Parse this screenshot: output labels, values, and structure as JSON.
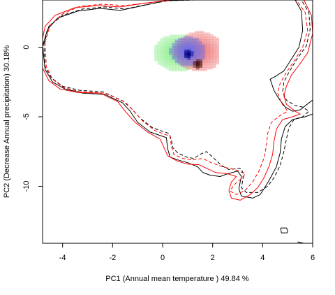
{
  "chart_data": {
    "type": "contour",
    "title": "",
    "xlabel": "PC1 (Annual mean temperature ) 49.84 %",
    "ylabel": "PC2 (Decrease Annual precipitation) 30.18%",
    "xlim": [
      -4.8,
      6.0
    ],
    "ylim": [
      -14.1,
      3.4
    ],
    "xticks": [
      -4,
      -2,
      0,
      2,
      4,
      6
    ],
    "yticks": [
      0,
      -5,
      -10
    ],
    "grid": false,
    "legend": "none",
    "contours": [
      {
        "color": "#000000",
        "style": "solid",
        "points": [
          [
            -4.8,
            0.1
          ],
          [
            -4.6,
            1.3
          ],
          [
            -4.2,
            2.1
          ],
          [
            -3.4,
            2.6
          ],
          [
            -2.5,
            2.8
          ],
          [
            -1.7,
            2.65
          ],
          [
            -0.9,
            2.95
          ],
          [
            0.1,
            3.35
          ],
          [
            1.1,
            3.4
          ],
          [
            3.2,
            3.4
          ],
          [
            5.3,
            3.4
          ],
          [
            5.55,
            2.6
          ],
          [
            5.6,
            1.2
          ],
          [
            5.45,
            0.0
          ],
          [
            5.1,
            -1.0
          ],
          [
            4.85,
            -1.7
          ],
          [
            4.5,
            -2.1
          ],
          [
            4.3,
            -2.3
          ],
          [
            4.45,
            -3.1
          ],
          [
            4.65,
            -3.7
          ],
          [
            4.9,
            -4.3
          ],
          [
            5.2,
            -4.6
          ],
          [
            5.5,
            -4.5
          ],
          [
            5.85,
            -4.0
          ],
          [
            6.0,
            -3.8
          ],
          [
            6.0,
            -4.8
          ],
          [
            5.7,
            -5.0
          ],
          [
            5.2,
            -5.2
          ],
          [
            4.9,
            -5.7
          ],
          [
            4.75,
            -6.6
          ],
          [
            4.7,
            -7.6
          ],
          [
            4.55,
            -8.6
          ],
          [
            4.25,
            -9.6
          ],
          [
            4.05,
            -10.2
          ],
          [
            3.9,
            -10.6
          ],
          [
            3.6,
            -10.85
          ],
          [
            3.15,
            -10.7
          ],
          [
            3.05,
            -10.2
          ],
          [
            3.1,
            -9.7
          ],
          [
            3.15,
            -9.3
          ],
          [
            3.0,
            -8.9
          ],
          [
            2.6,
            -9.1
          ],
          [
            2.3,
            -9.3
          ],
          [
            1.9,
            -9.2
          ],
          [
            1.6,
            -9.0
          ],
          [
            1.4,
            -8.6
          ],
          [
            1.0,
            -8.3
          ],
          [
            0.6,
            -8.1
          ],
          [
            0.3,
            -7.9
          ],
          [
            0.2,
            -7.3
          ],
          [
            0.15,
            -6.5
          ],
          [
            -0.5,
            -6.1
          ],
          [
            -1.0,
            -5.4
          ],
          [
            -1.3,
            -4.6
          ],
          [
            -1.6,
            -4.0
          ],
          [
            -2.3,
            -3.4
          ],
          [
            -3.2,
            -3.3
          ],
          [
            -3.9,
            -3.0
          ],
          [
            -4.4,
            -2.5
          ],
          [
            -4.7,
            -1.6
          ],
          [
            -4.8,
            0.1
          ]
        ]
      },
      {
        "color": "#000000",
        "style": "dashed",
        "points": [
          [
            -4.75,
            0.2
          ],
          [
            -4.55,
            1.5
          ],
          [
            -4.0,
            2.3
          ],
          [
            -3.2,
            2.75
          ],
          [
            -2.3,
            2.9
          ],
          [
            -1.5,
            2.75
          ],
          [
            -0.7,
            3.05
          ],
          [
            0.2,
            3.35
          ],
          [
            1.3,
            3.4
          ],
          [
            3.4,
            3.4
          ],
          [
            5.55,
            3.4
          ],
          [
            5.85,
            2.5
          ],
          [
            5.9,
            1.3
          ],
          [
            5.75,
            0.1
          ],
          [
            5.35,
            -0.9
          ],
          [
            5.05,
            -1.8
          ],
          [
            4.85,
            -2.5
          ],
          [
            4.8,
            -3.2
          ],
          [
            4.95,
            -3.8
          ],
          [
            5.3,
            -4.2
          ],
          [
            5.6,
            -4.3
          ],
          [
            5.85,
            -4.6
          ],
          [
            5.6,
            -5.0
          ],
          [
            5.25,
            -5.2
          ],
          [
            5.05,
            -5.8
          ],
          [
            4.95,
            -6.6
          ],
          [
            4.85,
            -7.5
          ],
          [
            4.7,
            -8.5
          ],
          [
            4.45,
            -9.4
          ],
          [
            4.2,
            -10.0
          ],
          [
            3.8,
            -10.45
          ],
          [
            3.35,
            -10.45
          ],
          [
            3.15,
            -10.1
          ],
          [
            3.2,
            -9.6
          ],
          [
            3.25,
            -9.1
          ],
          [
            3.1,
            -8.7
          ],
          [
            2.65,
            -8.8
          ],
          [
            2.35,
            -8.5
          ],
          [
            2.0,
            -7.9
          ],
          [
            1.75,
            -7.5
          ],
          [
            1.5,
            -7.7
          ],
          [
            1.25,
            -8.0
          ],
          [
            0.95,
            -7.9
          ],
          [
            0.6,
            -7.6
          ],
          [
            0.4,
            -7.2
          ],
          [
            0.35,
            -6.6
          ],
          [
            0.25,
            -6.2
          ],
          [
            -0.4,
            -5.8
          ],
          [
            -0.9,
            -5.1
          ],
          [
            -1.25,
            -4.4
          ],
          [
            -1.6,
            -3.85
          ],
          [
            -2.4,
            -3.2
          ],
          [
            -3.3,
            -3.1
          ],
          [
            -4.0,
            -2.8
          ],
          [
            -4.45,
            -2.2
          ],
          [
            -4.7,
            -1.4
          ],
          [
            -4.75,
            0.2
          ]
        ]
      },
      {
        "color": "#ff0000",
        "style": "solid",
        "points": [
          [
            -4.85,
            0.2
          ],
          [
            -4.7,
            1.5
          ],
          [
            -4.3,
            2.3
          ],
          [
            -3.5,
            2.85
          ],
          [
            -2.6,
            3.0
          ],
          [
            -1.7,
            2.9
          ],
          [
            -0.8,
            3.15
          ],
          [
            0.3,
            3.4
          ],
          [
            1.5,
            3.4
          ],
          [
            3.5,
            3.4
          ],
          [
            5.65,
            3.4
          ],
          [
            5.95,
            2.3
          ],
          [
            6.0,
            1.0
          ],
          [
            5.8,
            -0.4
          ],
          [
            5.45,
            -1.3
          ],
          [
            5.15,
            -2.0
          ],
          [
            4.95,
            -2.8
          ],
          [
            4.85,
            -3.5
          ],
          [
            4.95,
            -4.1
          ],
          [
            5.3,
            -4.6
          ],
          [
            5.5,
            -4.8
          ],
          [
            5.2,
            -5.0
          ],
          [
            4.8,
            -5.2
          ],
          [
            4.55,
            -5.9
          ],
          [
            4.45,
            -6.8
          ],
          [
            4.4,
            -7.7
          ],
          [
            4.25,
            -8.6
          ],
          [
            4.05,
            -9.4
          ],
          [
            3.8,
            -10.1
          ],
          [
            3.5,
            -10.6
          ],
          [
            3.1,
            -11.0
          ],
          [
            2.75,
            -10.85
          ],
          [
            2.65,
            -10.3
          ],
          [
            2.75,
            -9.7
          ],
          [
            2.95,
            -9.3
          ],
          [
            2.6,
            -9.1
          ],
          [
            2.1,
            -9.0
          ],
          [
            1.75,
            -8.7
          ],
          [
            1.45,
            -8.45
          ],
          [
            1.0,
            -8.4
          ],
          [
            0.6,
            -8.2
          ],
          [
            0.2,
            -7.8
          ],
          [
            0.05,
            -7.2
          ],
          [
            -0.1,
            -6.6
          ],
          [
            -0.6,
            -6.1
          ],
          [
            -1.1,
            -5.4
          ],
          [
            -1.5,
            -4.6
          ],
          [
            -1.8,
            -3.9
          ],
          [
            -2.5,
            -3.3
          ],
          [
            -3.4,
            -3.25
          ],
          [
            -4.1,
            -3.0
          ],
          [
            -4.55,
            -2.4
          ],
          [
            -4.8,
            -1.5
          ],
          [
            -4.85,
            0.2
          ]
        ]
      },
      {
        "color": "#ff0000",
        "style": "dashed",
        "points": [
          [
            -4.7,
            0.35
          ],
          [
            -4.5,
            1.6
          ],
          [
            -4.0,
            2.4
          ],
          [
            -3.3,
            2.95
          ],
          [
            -2.4,
            3.1
          ],
          [
            -1.5,
            3.0
          ],
          [
            -0.6,
            3.2
          ],
          [
            0.4,
            3.4
          ],
          [
            1.6,
            3.4
          ],
          [
            3.6,
            3.4
          ],
          [
            5.35,
            3.4
          ],
          [
            5.7,
            2.5
          ],
          [
            5.8,
            1.2
          ],
          [
            5.6,
            0.0
          ],
          [
            5.25,
            -1.0
          ],
          [
            4.95,
            -1.8
          ],
          [
            4.7,
            -2.6
          ],
          [
            4.6,
            -3.3
          ],
          [
            4.75,
            -4.0
          ],
          [
            5.0,
            -4.6
          ],
          [
            4.7,
            -4.9
          ],
          [
            4.35,
            -5.4
          ],
          [
            4.2,
            -6.2
          ],
          [
            4.15,
            -7.1
          ],
          [
            4.05,
            -8.0
          ],
          [
            3.85,
            -8.9
          ],
          [
            3.6,
            -9.7
          ],
          [
            3.3,
            -10.3
          ],
          [
            2.95,
            -10.6
          ],
          [
            2.7,
            -10.35
          ],
          [
            2.85,
            -9.9
          ],
          [
            3.15,
            -9.45
          ],
          [
            3.3,
            -9.1
          ],
          [
            2.9,
            -8.8
          ],
          [
            2.4,
            -8.6
          ],
          [
            1.95,
            -8.3
          ],
          [
            1.6,
            -8.0
          ],
          [
            1.2,
            -8.1
          ],
          [
            0.8,
            -8.0
          ],
          [
            0.45,
            -7.7
          ],
          [
            0.35,
            -7.1
          ],
          [
            0.3,
            -6.4
          ],
          [
            -0.3,
            -6.0
          ],
          [
            -0.8,
            -5.3
          ],
          [
            -1.2,
            -4.5
          ],
          [
            -1.5,
            -3.95
          ],
          [
            -2.3,
            -3.3
          ],
          [
            -3.3,
            -3.2
          ],
          [
            -3.95,
            -2.9
          ],
          [
            -4.4,
            -2.3
          ],
          [
            -4.65,
            -1.4
          ],
          [
            -4.7,
            0.35
          ]
        ]
      },
      {
        "color": "#000000",
        "style": "solid",
        "points": [
          [
            4.72,
            -13.0
          ],
          [
            4.95,
            -13.0
          ],
          [
            5.0,
            -13.2
          ],
          [
            4.98,
            -13.35
          ],
          [
            4.75,
            -13.35
          ],
          [
            4.72,
            -13.0
          ]
        ]
      },
      {
        "color": "#000000",
        "style": "solid",
        "points": [
          [
            5.4,
            -14.0
          ],
          [
            5.65,
            -14.1
          ],
          [
            5.85,
            -14.1
          ]
        ]
      }
    ],
    "density_patches": [
      {
        "color": "#90ee90",
        "center": [
          0.55,
          -0.45
        ],
        "spread": [
          0.55,
          0.75
        ],
        "extent": [
          [
            -0.45,
            1.35
          ],
          [
            -2.2,
            0.9
          ]
        ]
      },
      {
        "color": "#f08080",
        "center": [
          1.4,
          -0.35
        ],
        "spread": [
          0.55,
          0.8
        ],
        "extent": [
          [
            0.45,
            2.2
          ],
          [
            -2.3,
            1.4
          ]
        ]
      },
      {
        "color": "#6f6fe6",
        "center": [
          0.95,
          -0.35
        ],
        "spread": [
          0.4,
          0.6
        ],
        "extent": [
          [
            0.25,
            1.75
          ],
          [
            -1.6,
            1.15
          ]
        ]
      },
      {
        "color": "#000080",
        "center": [
          0.95,
          -0.55
        ],
        "spread": [
          0.1,
          0.2
        ],
        "extent": [
          [
            0.75,
            1.15
          ],
          [
            -1.0,
            -0.1
          ]
        ]
      },
      {
        "color": "#4a1010",
        "center": [
          1.35,
          -1.25
        ],
        "spread": [
          0.1,
          0.2
        ],
        "extent": [
          [
            1.1,
            1.55
          ],
          [
            -1.7,
            -0.8
          ]
        ]
      }
    ]
  }
}
